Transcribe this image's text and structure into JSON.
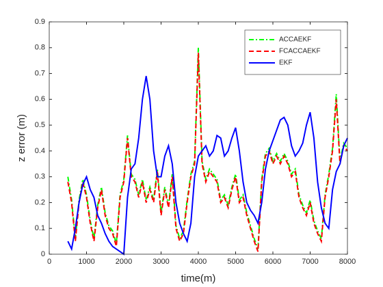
{
  "chart_data": {
    "type": "line",
    "xlabel": "time(m)",
    "ylabel": "z error (m)",
    "x": [
      500,
      600,
      700,
      800,
      900,
      1000,
      1100,
      1200,
      1300,
      1400,
      1500,
      1600,
      1700,
      1800,
      1900,
      2000,
      2100,
      2200,
      2300,
      2400,
      2500,
      2600,
      2700,
      2800,
      2900,
      3000,
      3100,
      3200,
      3300,
      3400,
      3500,
      3600,
      3700,
      3800,
      3900,
      4000,
      4100,
      4200,
      4300,
      4400,
      4500,
      4600,
      4700,
      4800,
      4900,
      5000,
      5100,
      5200,
      5300,
      5400,
      5500,
      5600,
      5700,
      5800,
      5900,
      6000,
      6100,
      6200,
      6300,
      6400,
      6500,
      6600,
      6700,
      6800,
      6900,
      7000,
      7100,
      7200,
      7300,
      7400,
      7500,
      7600,
      7700,
      7800,
      7900,
      8000
    ],
    "series": [
      {
        "name": "ACCAEKF",
        "color": "#00ff00",
        "dash": "dashdot",
        "values": [
          0.3,
          0.21,
          0.06,
          0.21,
          0.29,
          0.23,
          0.13,
          0.06,
          0.19,
          0.26,
          0.16,
          0.11,
          0.09,
          0.04,
          0.23,
          0.29,
          0.46,
          0.31,
          0.29,
          0.23,
          0.29,
          0.21,
          0.26,
          0.21,
          0.33,
          0.16,
          0.26,
          0.19,
          0.31,
          0.11,
          0.06,
          0.09,
          0.21,
          0.31,
          0.36,
          0.8,
          0.36,
          0.29,
          0.33,
          0.31,
          0.29,
          0.21,
          0.23,
          0.19,
          0.26,
          0.31,
          0.21,
          0.23,
          0.16,
          0.11,
          0.06,
          0.02,
          0.29,
          0.39,
          0.41,
          0.36,
          0.39,
          0.36,
          0.39,
          0.36,
          0.31,
          0.33,
          0.23,
          0.19,
          0.16,
          0.21,
          0.13,
          0.09,
          0.06,
          0.23,
          0.31,
          0.41,
          0.62,
          0.36,
          0.43,
          0.41
        ]
      },
      {
        "name": "FCACCAEKF",
        "color": "#ff0000",
        "dash": "dash",
        "values": [
          0.28,
          0.2,
          0.05,
          0.2,
          0.28,
          0.22,
          0.12,
          0.05,
          0.18,
          0.25,
          0.15,
          0.1,
          0.08,
          0.03,
          0.22,
          0.28,
          0.45,
          0.3,
          0.28,
          0.22,
          0.28,
          0.2,
          0.25,
          0.2,
          0.32,
          0.15,
          0.25,
          0.18,
          0.3,
          0.1,
          0.05,
          0.08,
          0.2,
          0.3,
          0.35,
          0.78,
          0.35,
          0.28,
          0.32,
          0.3,
          0.28,
          0.2,
          0.22,
          0.18,
          0.25,
          0.3,
          0.2,
          0.22,
          0.15,
          0.1,
          0.05,
          0.01,
          0.28,
          0.38,
          0.4,
          0.35,
          0.38,
          0.35,
          0.38,
          0.35,
          0.3,
          0.32,
          0.22,
          0.18,
          0.15,
          0.2,
          0.12,
          0.08,
          0.05,
          0.22,
          0.3,
          0.4,
          0.6,
          0.35,
          0.42,
          0.4
        ]
      },
      {
        "name": "EKF",
        "color": "#0000ff",
        "dash": "solid",
        "values": [
          0.05,
          0.02,
          0.1,
          0.2,
          0.27,
          0.3,
          0.25,
          0.22,
          0.15,
          0.12,
          0.08,
          0.05,
          0.03,
          0.02,
          0.01,
          0.0,
          0.22,
          0.33,
          0.35,
          0.45,
          0.6,
          0.69,
          0.6,
          0.4,
          0.3,
          0.3,
          0.38,
          0.42,
          0.35,
          0.2,
          0.12,
          0.08,
          0.05,
          0.12,
          0.3,
          0.38,
          0.4,
          0.42,
          0.38,
          0.4,
          0.46,
          0.45,
          0.38,
          0.4,
          0.45,
          0.49,
          0.4,
          0.28,
          0.2,
          0.17,
          0.15,
          0.12,
          0.2,
          0.33,
          0.4,
          0.44,
          0.48,
          0.52,
          0.53,
          0.5,
          0.42,
          0.38,
          0.4,
          0.43,
          0.5,
          0.55,
          0.45,
          0.28,
          0.18,
          0.12,
          0.1,
          0.25,
          0.32,
          0.35,
          0.42,
          0.45
        ]
      }
    ],
    "xlim": [
      0,
      8000
    ],
    "xticks": [
      0,
      1000,
      2000,
      3000,
      4000,
      5000,
      6000,
      7000,
      8000
    ],
    "ylim": [
      0,
      0.9
    ],
    "yticks": [
      0,
      0.1,
      0.2,
      0.3,
      0.4,
      0.5,
      0.6,
      0.7,
      0.8,
      0.9
    ],
    "grid": false,
    "legend": "upper right"
  }
}
